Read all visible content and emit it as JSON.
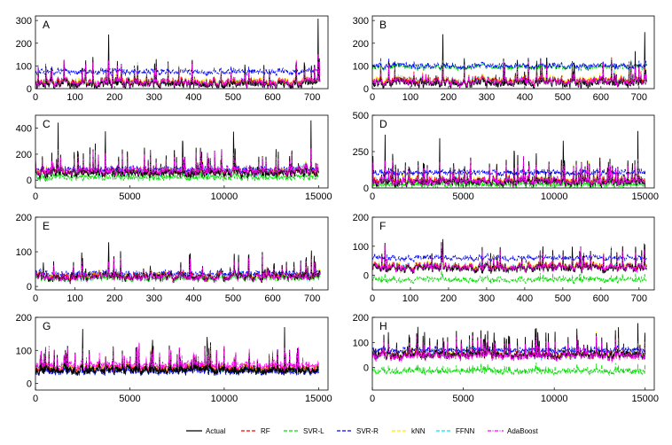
{
  "figure": {
    "background": "#ffffff"
  },
  "legend": {
    "placement": "bottom-center",
    "entries": [
      {
        "key": "actual",
        "label": "Actual",
        "color": "#000000",
        "dash": "solid"
      },
      {
        "key": "rf",
        "label": "RF",
        "color": "#ff0000",
        "dash": "dashed"
      },
      {
        "key": "svrl",
        "label": "SVR-L",
        "color": "#00dd00",
        "dash": "dashed"
      },
      {
        "key": "svrr",
        "label": "SVR-R",
        "color": "#0000ff",
        "dash": "dashed"
      },
      {
        "key": "knn",
        "label": "kNN",
        "color": "#ffee00",
        "dash": "dashed"
      },
      {
        "key": "ffnn",
        "label": "FFNN",
        "color": "#00e5ff",
        "dash": "dashed"
      },
      {
        "key": "adaboost",
        "label": "AdaBoost",
        "color": "#ff00ff",
        "dash": "dashdot"
      }
    ]
  },
  "chart_data": [
    {
      "panel": "A",
      "type": "line",
      "xlim": [
        0,
        740
      ],
      "ylim": [
        0,
        320
      ],
      "xticks": [
        0,
        100,
        200,
        300,
        400,
        500,
        600,
        700
      ],
      "yticks": [
        0,
        100,
        200,
        300
      ],
      "n_points": 720,
      "grid": false,
      "levels": {
        "actual": 20,
        "rf": 30,
        "svrl": 25,
        "svrr": 75,
        "knn": 32,
        "ffnn": 30,
        "adaboost": 28
      },
      "peaks": [
        {
          "x": 185,
          "y": 298
        },
        {
          "x": 530,
          "y": 130
        },
        {
          "x": 680,
          "y": 120
        },
        {
          "x": 715,
          "y": 310
        }
      ]
    },
    {
      "panel": "B",
      "type": "line",
      "xlim": [
        0,
        740
      ],
      "ylim": [
        0,
        320
      ],
      "xticks": [
        0,
        100,
        200,
        300,
        400,
        500,
        600,
        700
      ],
      "yticks": [
        0,
        100,
        200,
        300
      ],
      "n_points": 720,
      "grid": false,
      "levels": {
        "actual": 25,
        "rf": 35,
        "svrl": 95,
        "svrr": 100,
        "knn": 38,
        "ffnn": 35,
        "adaboost": 32
      },
      "peaks": [
        {
          "x": 185,
          "y": 298
        },
        {
          "x": 530,
          "y": 140
        },
        {
          "x": 690,
          "y": 170
        },
        {
          "x": 715,
          "y": 250
        }
      ]
    },
    {
      "panel": "C",
      "type": "line",
      "xlim": [
        0,
        15500
      ],
      "ylim": [
        -60,
        500
      ],
      "xticks": [
        0,
        5000,
        10000,
        15000
      ],
      "yticks": [
        0,
        200,
        400
      ],
      "n_points": 900,
      "grid": false,
      "levels": {
        "actual": 55,
        "rf": 60,
        "svrl": 20,
        "svrr": 85,
        "knn": 65,
        "ffnn": 60,
        "adaboost": 70
      },
      "peaks": [
        {
          "x": 1200,
          "y": 470
        },
        {
          "x": 3700,
          "y": 460
        },
        {
          "x": 7800,
          "y": 470
        },
        {
          "x": 10500,
          "y": 480
        },
        {
          "x": 14600,
          "y": 470
        }
      ]
    },
    {
      "panel": "D",
      "type": "line",
      "xlim": [
        0,
        15500
      ],
      "ylim": [
        0,
        500
      ],
      "xticks": [
        0,
        5000,
        10000,
        15000
      ],
      "yticks": [
        0,
        250,
        500
      ],
      "n_points": 900,
      "grid": false,
      "levels": {
        "actual": 40,
        "rf": 50,
        "svrl": 20,
        "svrr": 105,
        "knn": 55,
        "ffnn": 50,
        "adaboost": 45
      },
      "peaks": [
        {
          "x": 700,
          "y": 380
        },
        {
          "x": 3700,
          "y": 420
        },
        {
          "x": 7800,
          "y": 400
        },
        {
          "x": 10500,
          "y": 420
        },
        {
          "x": 14600,
          "y": 400
        }
      ]
    },
    {
      "panel": "E",
      "type": "line",
      "xlim": [
        0,
        740
      ],
      "ylim": [
        -10,
        200
      ],
      "xticks": [
        0,
        100,
        200,
        300,
        400,
        500,
        600,
        700
      ],
      "yticks": [
        0,
        100,
        200
      ],
      "n_points": 720,
      "grid": false,
      "levels": {
        "actual": 28,
        "rf": 30,
        "svrl": 22,
        "svrr": 38,
        "knn": 30,
        "ffnn": 29,
        "adaboost": 27
      },
      "peaks": [
        {
          "x": 185,
          "y": 155
        },
        {
          "x": 20,
          "y": 70
        }
      ]
    },
    {
      "panel": "F",
      "type": "line",
      "xlim": [
        0,
        740
      ],
      "ylim": [
        -50,
        200
      ],
      "xticks": [
        0,
        100,
        200,
        300,
        400,
        500,
        600,
        700
      ],
      "yticks": [
        0,
        100,
        200
      ],
      "n_points": 720,
      "grid": false,
      "levels": {
        "actual": 25,
        "rf": 30,
        "svrl": -15,
        "svrr": 60,
        "knn": 32,
        "ffnn": 30,
        "adaboost": 28
      },
      "peaks": [
        {
          "x": 185,
          "y": 152
        },
        {
          "x": 525,
          "y": 120
        },
        {
          "x": 715,
          "y": 105
        }
      ]
    },
    {
      "panel": "G",
      "type": "line",
      "xlim": [
        0,
        15500
      ],
      "ylim": [
        -20,
        200
      ],
      "xticks": [
        0,
        5000,
        10000,
        15000
      ],
      "yticks": [
        0,
        100,
        200
      ],
      "n_points": 900,
      "grid": false,
      "levels": {
        "actual": 40,
        "rf": 45,
        "svrl": 40,
        "svrr": 35,
        "knn": 48,
        "ffnn": 45,
        "adaboost": 55
      },
      "peaks": [
        {
          "x": 2500,
          "y": 185
        },
        {
          "x": 6200,
          "y": 180
        },
        {
          "x": 9100,
          "y": 190
        },
        {
          "x": 13200,
          "y": 185
        }
      ]
    },
    {
      "panel": "H",
      "type": "line",
      "xlim": [
        0,
        15500
      ],
      "ylim": [
        -90,
        200
      ],
      "xticks": [
        0,
        5000,
        10000,
        15000
      ],
      "yticks": [
        0,
        100,
        200
      ],
      "n_points": 900,
      "grid": false,
      "levels": {
        "actual": 50,
        "rf": 50,
        "svrl": -15,
        "svrr": 70,
        "knn": 52,
        "ffnn": 50,
        "adaboost": 45
      },
      "peaks": [
        {
          "x": 2500,
          "y": 180
        },
        {
          "x": 6200,
          "y": 175
        },
        {
          "x": 9100,
          "y": 185
        },
        {
          "x": 14600,
          "y": 180
        }
      ]
    }
  ]
}
